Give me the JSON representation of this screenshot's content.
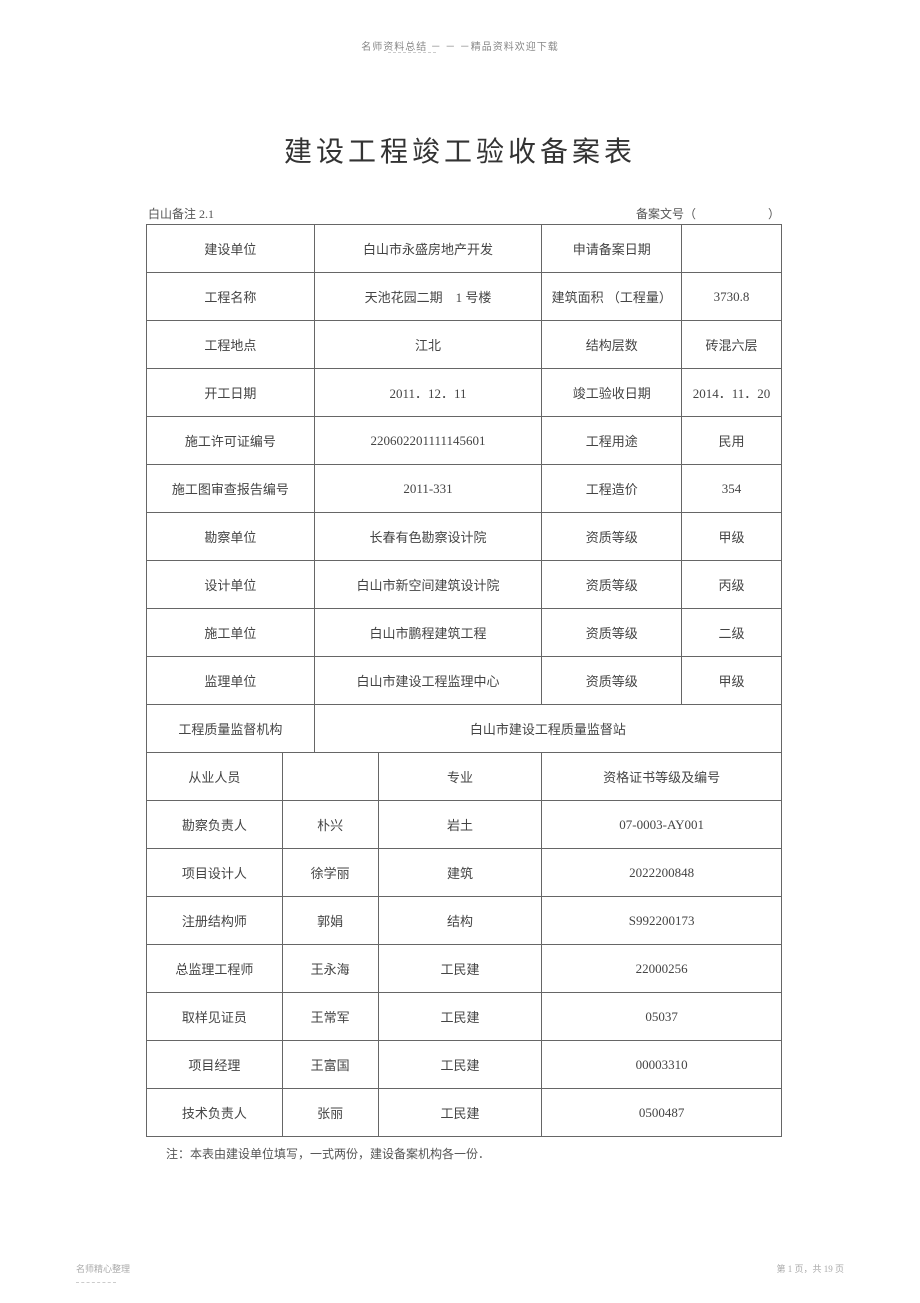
{
  "header_note": "名师资料总结 － － －精品资料欢迎下载",
  "title": "建设工程竣工验收备案表",
  "meta": {
    "left": "白山备注  2.1",
    "right": "备案文号（　　　　　　）"
  },
  "rows1": [
    {
      "c1": "建设单位",
      "c2": "白山市永盛房地产开发",
      "c3": "申请备案日期",
      "c4": ""
    },
    {
      "c1": "工程名称",
      "c2": "天池花园二期　1 号楼",
      "c3": "建筑面积 （工程量）",
      "c4": "3730.8"
    },
    {
      "c1": "工程地点",
      "c2": "江北",
      "c3": "结构层数",
      "c4": "砖混六层"
    },
    {
      "c1": "开工日期",
      "c2": "2011．12．11",
      "c3": "竣工验收日期",
      "c4": "2014．11．20"
    },
    {
      "c1": "施工许可证编号",
      "c2": "220602201111145601",
      "c3": "工程用途",
      "c4": "民用"
    },
    {
      "c1": "施工图审查报告编号",
      "c2": "2011-331",
      "c3": "工程造价",
      "c4": "354"
    },
    {
      "c1": "勘察单位",
      "c2": "长春有色勘察设计院",
      "c3": "资质等级",
      "c4": "甲级"
    },
    {
      "c1": "设计单位",
      "c2": "白山市新空间建筑设计院",
      "c3": "资质等级",
      "c4": "丙级"
    },
    {
      "c1": "施工单位",
      "c2": "白山市鹏程建筑工程",
      "c3": "资质等级",
      "c4": "二级"
    },
    {
      "c1": "监理单位",
      "c2": "白山市建设工程监理中心",
      "c3": "资质等级",
      "c4": "甲级"
    }
  ],
  "supervision_row": {
    "label": "工程质量监督机构",
    "value": "白山市建设工程质量监督站"
  },
  "personnel_header": {
    "c1": "从业人员",
    "c2": "",
    "c3": "专业",
    "c4": "资格证书等级及编号"
  },
  "personnel": [
    {
      "c1": "勘察负责人",
      "c2": "朴兴",
      "c3": "岩土",
      "c4": "07-0003-AY001"
    },
    {
      "c1": "项目设计人",
      "c2": "徐学丽",
      "c3": "建筑",
      "c4": "2022200848"
    },
    {
      "c1": "注册结构师",
      "c2": "郭娟",
      "c3": "结构",
      "c4": "S992200173"
    },
    {
      "c1": "总监理工程师",
      "c2": "王永海",
      "c3": "工民建",
      "c4": "22000256"
    },
    {
      "c1": "取样见证员",
      "c2": "王常军",
      "c3": "工民建",
      "c4": "05037"
    },
    {
      "c1": "项目经理",
      "c2": "王富国",
      "c3": "工民建",
      "c4": "00003310"
    },
    {
      "c1": "技术负责人",
      "c2": "张丽",
      "c3": "工民建",
      "c4": "0500487"
    }
  ],
  "footer_note": "注：本表由建设单位填写，一式两份，建设备案机构各一份．",
  "bottom_left": "名师精心整理",
  "bottom_right": "第 1 页，共 19 页",
  "layout": {
    "col_widths_top": {
      "c1": 168,
      "c2": 228,
      "c3": 140,
      "c4": 100
    },
    "col_widths_personnel": {
      "c1": 136,
      "c2": 96,
      "c3": 164,
      "c4": 240
    },
    "border_color": "#666666",
    "text_color": "#444444",
    "font_size": 13
  }
}
